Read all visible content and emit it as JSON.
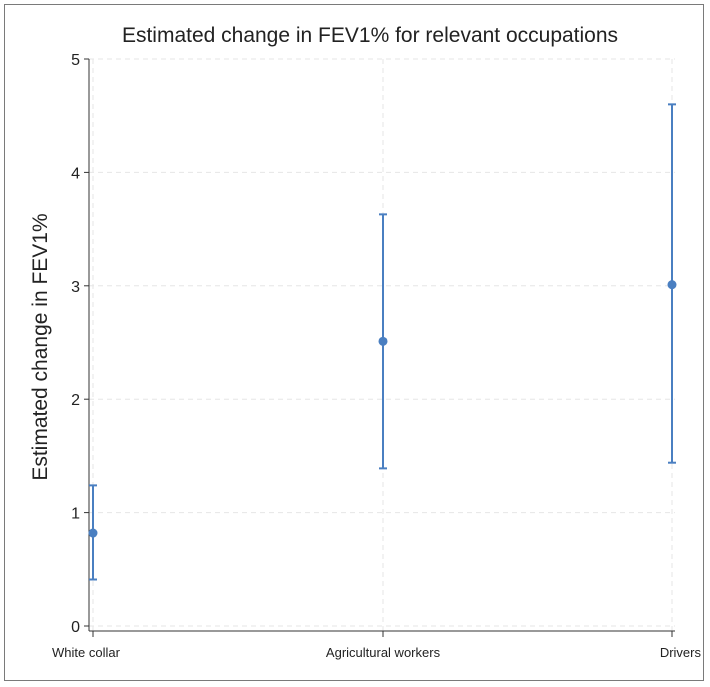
{
  "chart_data": {
    "type": "scatter",
    "title": "Estimated change in FEV1% for relevant occupations",
    "xlabel": "",
    "ylabel": "Estimated change in FEV1%",
    "categories": [
      "White collar",
      "Agricultural workers",
      "Drivers"
    ],
    "series": [
      {
        "values": [
          0.82,
          2.51,
          3.01
        ],
        "ci_lower": [
          0.41,
          1.39,
          1.44
        ],
        "ci_upper": [
          1.24,
          3.63,
          4.6
        ]
      }
    ],
    "ylim": [
      0,
      5
    ],
    "yticks": [
      0,
      1,
      2,
      3,
      4,
      5
    ],
    "grid": true,
    "legend": "none",
    "colors": {
      "marker": "#4a7fc1",
      "grid": "#e6e6e6",
      "axis": "#333333"
    }
  }
}
